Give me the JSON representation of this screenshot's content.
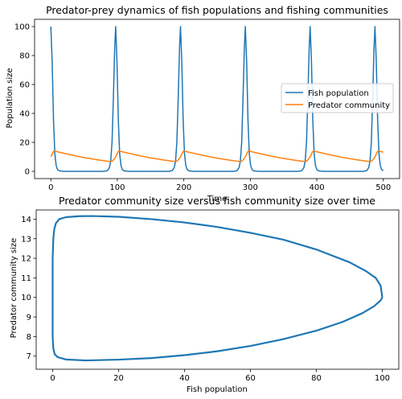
{
  "chart_data": [
    {
      "type": "line",
      "title": "Predator-prey dynamics of fish populations and fishing communities",
      "xlabel": "Time",
      "ylabel": "Population size",
      "xlim": [
        -24.5,
        524.5
      ],
      "ylim": [
        -5,
        105
      ],
      "xticks": [
        0,
        100,
        200,
        300,
        400,
        500
      ],
      "yticks": [
        0,
        20,
        40,
        60,
        80,
        100
      ],
      "legend": "center-right",
      "grid": false,
      "period": 97.5,
      "t_end": 500,
      "series": [
        {
          "name": "Fish population",
          "color": "#1f77b4",
          "keyframes_in_cycle": [
            [
              0,
              100
            ],
            [
              2,
              75
            ],
            [
              4,
              35
            ],
            [
              6,
              12
            ],
            [
              8,
              4
            ],
            [
              10,
              1.2
            ],
            [
              13,
              0.3
            ],
            [
              20,
              0
            ],
            [
              80,
              0
            ],
            [
              85,
              0.5
            ],
            [
              88,
              2.5
            ],
            [
              90,
              7
            ],
            [
              92,
              20
            ],
            [
              94,
              50
            ],
            [
              96,
              85
            ],
            [
              97.5,
              100
            ]
          ]
        },
        {
          "name": "Predator community",
          "color": "#ff7f0e",
          "keyframes_in_cycle": [
            [
              0,
              10
            ],
            [
              3,
              13
            ],
            [
              5,
              14.2
            ],
            [
              10,
              13.5
            ],
            [
              30,
              11.4
            ],
            [
              50,
              9.5
            ],
            [
              70,
              8
            ],
            [
              85,
              7
            ],
            [
              90,
              6.8
            ],
            [
              92,
              7
            ],
            [
              94,
              7.8
            ],
            [
              96,
              9
            ],
            [
              97.5,
              10
            ]
          ]
        }
      ]
    },
    {
      "type": "line",
      "title": "Predator community size versus fish community size over time",
      "xlabel": "Fish population",
      "ylabel": "Predator community size",
      "xlim": [
        -5,
        105
      ],
      "ylim": [
        6.33,
        14.47
      ],
      "xticks": [
        0,
        20,
        40,
        60,
        80,
        100
      ],
      "yticks": [
        7,
        8,
        9,
        10,
        11,
        12,
        13,
        14
      ],
      "grid": false,
      "series": [
        {
          "name": "",
          "color": "#1f77b4",
          "points": [
            [
              100,
              10
            ],
            [
              99.5,
              10.6
            ],
            [
              98,
              11
            ],
            [
              95,
              11.35
            ],
            [
              90,
              11.8
            ],
            [
              80,
              12.45
            ],
            [
              70,
              12.95
            ],
            [
              60,
              13.3
            ],
            [
              50,
              13.6
            ],
            [
              40,
              13.83
            ],
            [
              30,
              14.0
            ],
            [
              20,
              14.12
            ],
            [
              12,
              14.16
            ],
            [
              8,
              14.15
            ],
            [
              4,
              14.1
            ],
            [
              2,
              14.0
            ],
            [
              1,
              13.8
            ],
            [
              0.5,
              13.5
            ],
            [
              0.2,
              13.0
            ],
            [
              0,
              12.0
            ],
            [
              0,
              10.0
            ],
            [
              0,
              8.0
            ],
            [
              0.2,
              7.4
            ],
            [
              0.6,
              7.1
            ],
            [
              1.5,
              6.95
            ],
            [
              4,
              6.83
            ],
            [
              10,
              6.78
            ],
            [
              20,
              6.82
            ],
            [
              30,
              6.9
            ],
            [
              40,
              7.05
            ],
            [
              50,
              7.25
            ],
            [
              60,
              7.52
            ],
            [
              70,
              7.87
            ],
            [
              80,
              8.3
            ],
            [
              88,
              8.75
            ],
            [
              94,
              9.2
            ],
            [
              97.5,
              9.55
            ],
            [
              99.5,
              9.85
            ],
            [
              100,
              10
            ]
          ]
        }
      ]
    }
  ]
}
